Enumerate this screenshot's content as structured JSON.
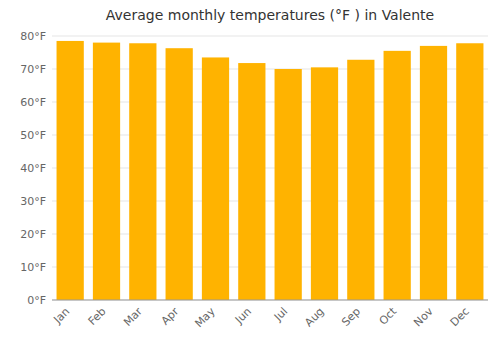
{
  "chart_data": {
    "type": "bar",
    "title": "Average monthly temperatures (°F ) in Valente",
    "categories": [
      "Jan",
      "Feb",
      "Mar",
      "Apr",
      "May",
      "Jun",
      "Jul",
      "Aug",
      "Sep",
      "Oct",
      "Nov",
      "Dec"
    ],
    "values": [
      78.5,
      78.0,
      77.8,
      76.3,
      73.5,
      71.8,
      70.0,
      70.5,
      72.8,
      75.5,
      77.0,
      77.8
    ],
    "color": "#FFB300",
    "ylim": [
      0,
      80
    ],
    "yticks": [
      {
        "value": 0,
        "label": "0°F"
      },
      {
        "value": 10,
        "label": "10°F"
      },
      {
        "value": 20,
        "label": "20°F"
      },
      {
        "value": 30,
        "label": "30°F"
      },
      {
        "value": 40,
        "label": "40°F"
      },
      {
        "value": 50,
        "label": "50°F"
      },
      {
        "value": 60,
        "label": "60°F"
      },
      {
        "value": 70,
        "label": "70°F"
      },
      {
        "value": 80,
        "label": "80°F"
      }
    ],
    "grid": true
  }
}
